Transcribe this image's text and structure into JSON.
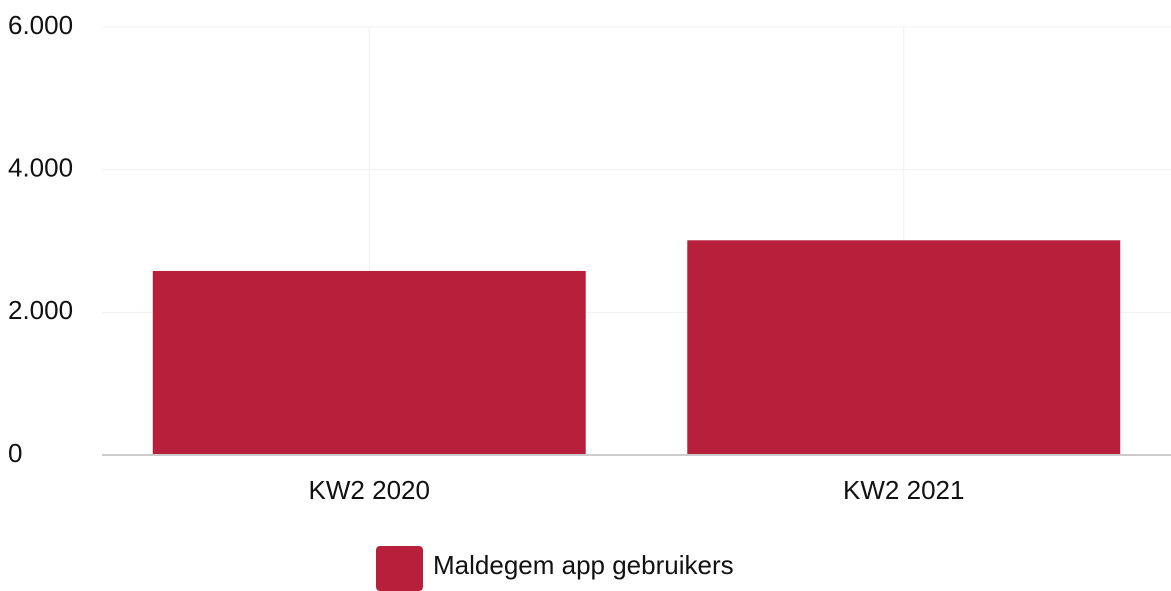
{
  "chart_data": {
    "type": "bar",
    "categories": [
      "KW2 2020",
      "KW2 2021"
    ],
    "series": [
      {
        "name": "Maldegem app gebruikers",
        "color": "#b71f3a",
        "values": [
          2580,
          3010
        ]
      }
    ],
    "ylim": [
      0,
      6000
    ],
    "yticks": [
      0,
      {
        "value": 2000,
        "label": "2.000"
      },
      {
        "value": 4000,
        "label": "4.000"
      },
      {
        "value": 6000,
        "label": "6.000"
      }
    ],
    "grid": true,
    "legend": "bottom"
  }
}
